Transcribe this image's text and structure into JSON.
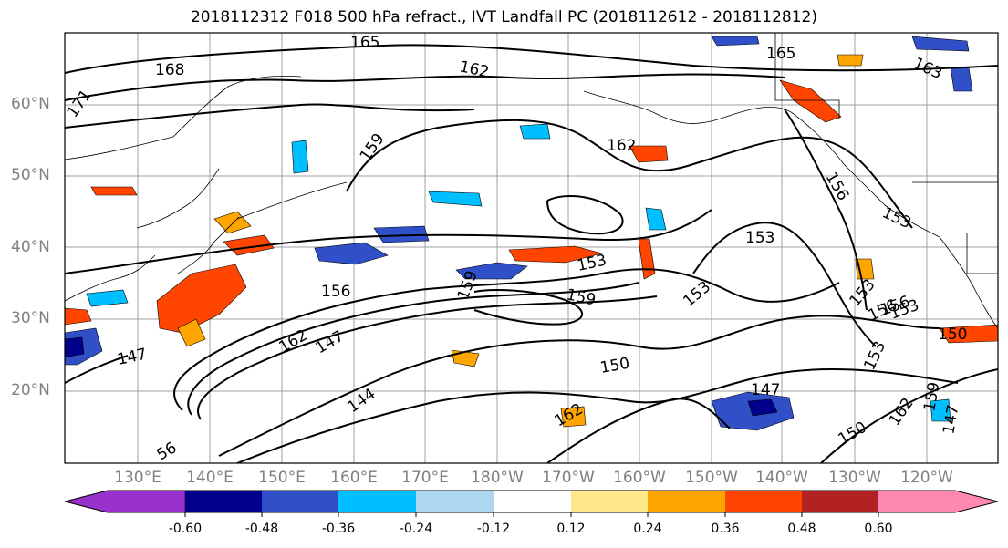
{
  "title": "2018112312 F018 500 hPa refract., IVT Landfall PC (2018112612 - 2018112812)",
  "lat_labels": [
    "60°N",
    "50°N",
    "40°N",
    "30°N",
    "20°N"
  ],
  "lon_labels": [
    "130°E",
    "140°E",
    "150°E",
    "160°E",
    "170°E",
    "180°W",
    "170°W",
    "160°W",
    "150°W",
    "140°W",
    "130°W",
    "120°W"
  ],
  "contour_labels": [
    "165",
    "162",
    "168",
    "171",
    "159",
    "162",
    "165",
    "163",
    "156",
    "153",
    "159",
    "153",
    "153",
    "156",
    "153",
    "159",
    "156",
    "147",
    "162",
    "147",
    "144",
    "150",
    "147",
    "162",
    "153",
    "150",
    "153",
    "156",
    "153",
    "150",
    "162",
    "147",
    "159",
    "56"
  ],
  "colorbar": {
    "ticks": [
      "-0.60",
      "-0.48",
      "-0.36",
      "-0.24",
      "-0.12",
      "0.12",
      "0.24",
      "0.36",
      "0.48",
      "0.60"
    ],
    "colors": [
      "#9932CC",
      "#00008B",
      "#3050C8",
      "#00BFFF",
      "#ADD8F0",
      "#FFFFFF",
      "#FFE88A",
      "#FFA500",
      "#FF4500",
      "#B22222",
      "#FF88B0"
    ]
  }
}
